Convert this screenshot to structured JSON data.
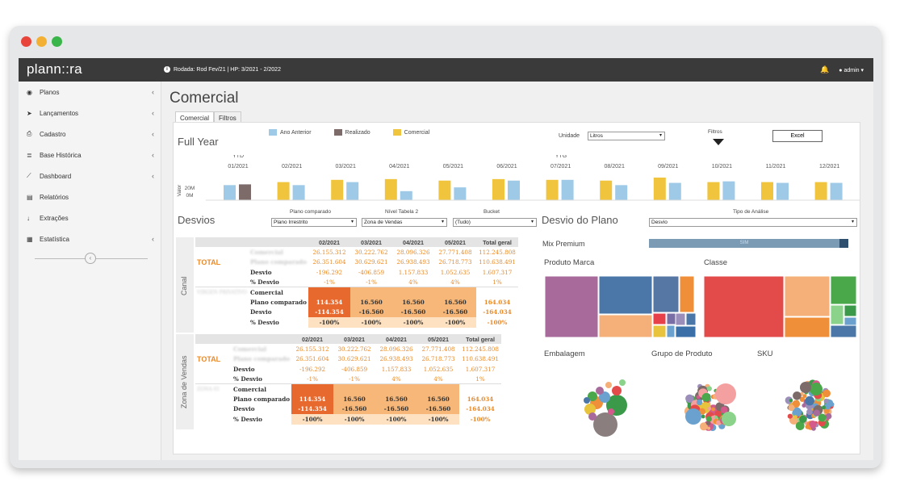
{
  "window": {
    "dots": [
      "#e8443a",
      "#f2b134",
      "#3ab54a"
    ]
  },
  "app": {
    "logo": "plann::ra",
    "rodada": "Rodada: Rod Fev/21 | HP: 3/2021 - 2/2022",
    "user": "admin"
  },
  "sidebar": {
    "items": [
      {
        "icon": "gauge-icon",
        "glyph": "◉",
        "label": "Planos",
        "chev": "‹"
      },
      {
        "icon": "paper-plane-icon",
        "glyph": "➤",
        "label": "Lançamentos",
        "chev": "‹"
      },
      {
        "icon": "printer-icon",
        "glyph": "⎙",
        "label": "Cadastro",
        "chev": "‹"
      },
      {
        "icon": "database-icon",
        "glyph": "≣",
        "label": "Base Histórica",
        "chev": "‹"
      },
      {
        "icon": "chart-icon",
        "glyph": "⟋",
        "label": "Dashboard",
        "chev": "‹"
      },
      {
        "icon": "file-icon",
        "glyph": "▤",
        "label": "Relatórios",
        "chev": ""
      },
      {
        "icon": "download-icon",
        "glyph": "↓",
        "label": "Extrações",
        "chev": ""
      },
      {
        "icon": "calculator-icon",
        "glyph": "▦",
        "label": "Estatística",
        "chev": "‹"
      }
    ]
  },
  "page": {
    "title": "Comercial",
    "tabs": [
      "Comercial",
      "Filtros"
    ]
  },
  "fullyear": {
    "title": "Full Year",
    "legend": [
      {
        "name": "Ano Anterior",
        "color": "#9ecae8"
      },
      {
        "name": "Realizado",
        "color": "#7d6b6a"
      },
      {
        "name": "Comercial",
        "color": "#f0c43c"
      }
    ],
    "unidade_label": "Unidade",
    "unidade_value": "Litros",
    "filtros_label": "Filtros",
    "excel_label": "Excel",
    "ytd": "YTD",
    "ytg": "YTG",
    "ylabel": "Valor",
    "yticks": [
      "20M",
      "0M"
    ],
    "months": [
      "01/2021",
      "02/2021",
      "03/2021",
      "04/2021",
      "05/2021",
      "06/2021",
      "07/2021",
      "08/2021",
      "09/2021",
      "10/2021",
      "11/2021",
      "12/2021"
    ]
  },
  "chart_data": {
    "type": "bar",
    "categories": [
      "01/2021",
      "02/2021",
      "03/2021",
      "04/2021",
      "05/2021",
      "06/2021",
      "07/2021",
      "08/2021",
      "09/2021",
      "10/2021",
      "11/2021",
      "12/2021"
    ],
    "ylabel": "Valor",
    "ylim": [
      0,
      30
    ],
    "series": [
      {
        "name": "Ano Anterior",
        "color": "#9ecae8",
        "values": [
          20,
          20,
          24,
          12,
          17,
          26,
          27,
          20,
          23,
          25,
          23,
          23
        ]
      },
      {
        "name": "Realizado",
        "color": "#7d6b6a",
        "values": [
          21,
          0,
          0,
          0,
          0,
          0,
          0,
          0,
          0,
          0,
          0,
          0
        ]
      },
      {
        "name": "Comercial",
        "color": "#f0c43c",
        "values": [
          0,
          24,
          27,
          28,
          26,
          28,
          27,
          26,
          30,
          24,
          24,
          24
        ]
      }
    ]
  },
  "desvios": {
    "title": "Desvios",
    "plano_label": "Plano comparado",
    "plano_value": "Plano Irrestrito",
    "nivel_label": "Nível Tabela 2",
    "nivel_value": "Zona de Vendas",
    "bucket_label": "Bucket",
    "bucket_value": "(Tudo)",
    "header": [
      "02/2021",
      "03/2021",
      "04/2021",
      "05/2021",
      "Total geral"
    ],
    "blocks": [
      {
        "side": "Canal",
        "total_label": "TOTAL",
        "rows": [
          {
            "label": "Comercial",
            "blur": true,
            "vals": [
              "26.155.312",
              "30.222.762",
              "28.096.326",
              "27.771.408",
              "112.245.808"
            ]
          },
          {
            "label": "Plano comparado",
            "blur": true,
            "vals": [
              "26.351.604",
              "30.629.621",
              "26.938.493",
              "26.718.773",
              "110.638.491"
            ]
          },
          {
            "label": "Desvio",
            "vals": [
              "-196.292",
              "-406.859",
              "1.157.833",
              "1.052.635",
              "1.607.317"
            ]
          },
          {
            "label": "% Desvio",
            "vals": [
              "-1%",
              "-1%",
              "4%",
              "4%",
              "1%"
            ]
          }
        ],
        "group_label": "VIRGEN PRIVATIVO",
        "rows2": [
          {
            "label": "Comercial",
            "vals": [
              "",
              "",
              "",
              "",
              ""
            ]
          },
          {
            "label": "Plano comparado",
            "vals": [
              "114.354",
              "16.560",
              "16.560",
              "16.560",
              "164.034"
            ]
          },
          {
            "label": "Desvio",
            "vals": [
              "-114.354",
              "-16.560",
              "-16.560",
              "-16.560",
              "-164.034"
            ]
          },
          {
            "label": "% Desvio",
            "vals": [
              "-100%",
              "-100%",
              "-100%",
              "-100%",
              "-100%"
            ]
          }
        ]
      },
      {
        "side": "Zona de Vendas",
        "total_label": "TOTAL",
        "rows": [
          {
            "label": "Comercial",
            "blur": true,
            "vals": [
              "26.155.312",
              "30.222.762",
              "28.096.326",
              "27.771.408",
              "112.245.808"
            ]
          },
          {
            "label": "Plano comparado",
            "blur": true,
            "vals": [
              "26.351.604",
              "30.629.621",
              "26.938.493",
              "26.718.773",
              "110.638.491"
            ]
          },
          {
            "label": "Desvio",
            "vals": [
              "-196.292",
              "-406.859",
              "1.157.833",
              "1.052.635",
              "1.607.317"
            ]
          },
          {
            "label": "% Desvio",
            "vals": [
              "-1%",
              "-1%",
              "4%",
              "4%",
              "1%"
            ]
          }
        ],
        "group_label": "ZONA 01",
        "rows2": [
          {
            "label": "Comercial",
            "vals": [
              "",
              "",
              "",
              "",
              ""
            ]
          },
          {
            "label": "Plano comparado",
            "vals": [
              "114.354",
              "16.560",
              "16.560",
              "16.560",
              "164.034"
            ]
          },
          {
            "label": "Desvio",
            "vals": [
              "-114.354",
              "-16.560",
              "-16.560",
              "-16.560",
              "-164.034"
            ]
          },
          {
            "label": "% Desvio",
            "vals": [
              "-100%",
              "-100%",
              "-100%",
              "-100%",
              "-100%"
            ]
          }
        ]
      }
    ]
  },
  "desvio_plano": {
    "title": "Desvio do Plano",
    "tipo_label": "Tipo de Análise",
    "tipo_value": "Desvio",
    "mix_label": "Mix Premium",
    "mix_value": "SIM",
    "produto_marca": "Produto Marca",
    "classe": "Classe",
    "embalagem": "Embalagem",
    "grupo": "Grupo de Produto",
    "sku": "SKU"
  }
}
